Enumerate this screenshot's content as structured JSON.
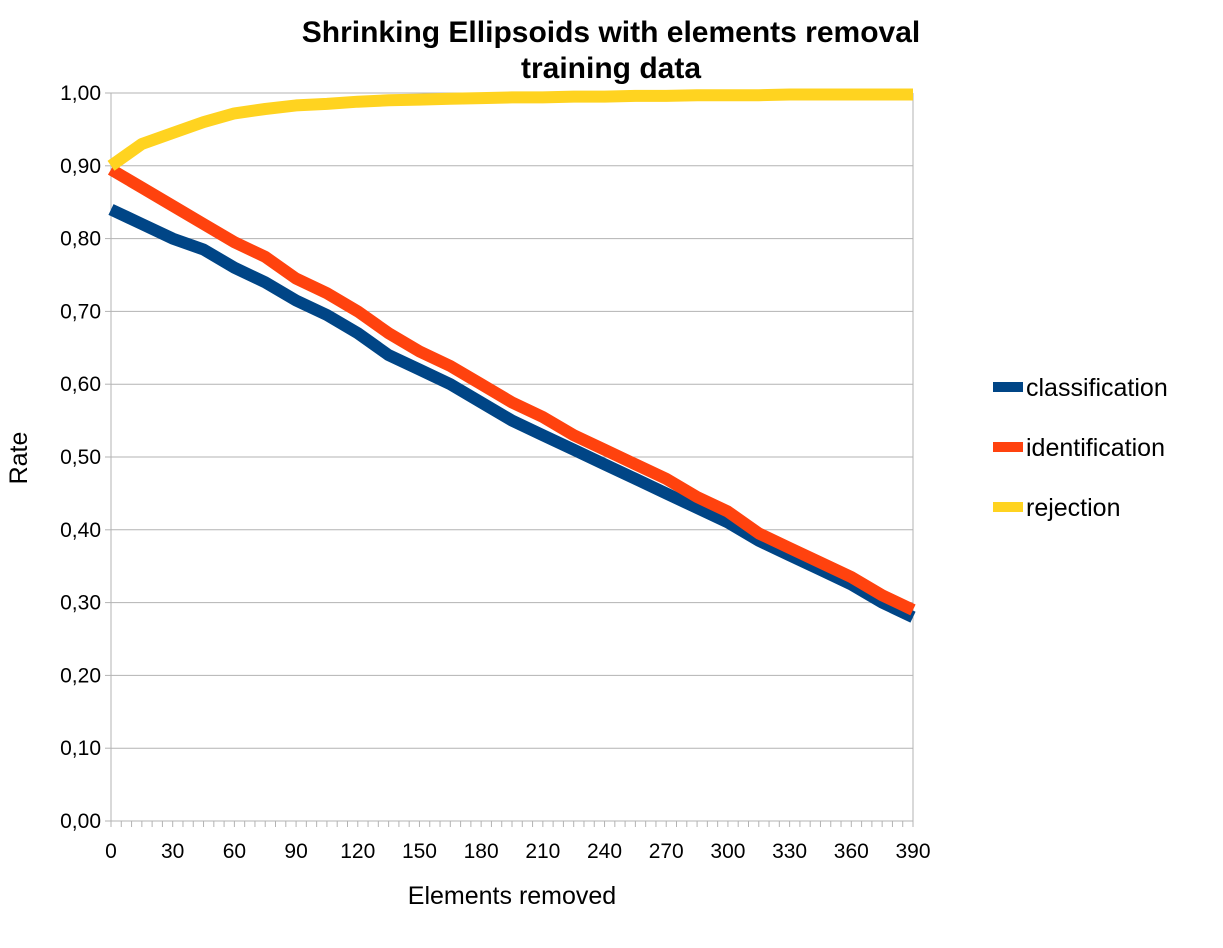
{
  "chart_data": {
    "type": "line",
    "title": "Shrinking Ellipsoids with elements removal",
    "subtitle": "training data",
    "xlabel": "Elements removed",
    "ylabel": "Rate",
    "xlim": [
      0,
      390
    ],
    "ylim": [
      0,
      1
    ],
    "x_ticks": [
      0,
      30,
      60,
      90,
      120,
      150,
      180,
      210,
      240,
      270,
      300,
      330,
      360,
      390
    ],
    "x_tick_labels": [
      "0",
      "30",
      "60",
      "90",
      "120",
      "150",
      "180",
      "210",
      "240",
      "270",
      "300",
      "330",
      "360",
      "390"
    ],
    "y_ticks": [
      0,
      0.1,
      0.2,
      0.3,
      0.4,
      0.5,
      0.6,
      0.7,
      0.8,
      0.9,
      1.0
    ],
    "y_tick_labels": [
      "0,00",
      "0,10",
      "0,20",
      "0,30",
      "0,40",
      "0,50",
      "0,60",
      "0,70",
      "0,80",
      "0,90",
      "1,00"
    ],
    "grid": true,
    "legend": "right",
    "x": [
      0,
      15,
      30,
      45,
      60,
      75,
      90,
      105,
      120,
      135,
      150,
      165,
      180,
      195,
      210,
      225,
      240,
      255,
      270,
      285,
      300,
      315,
      330,
      345,
      360,
      375,
      390
    ],
    "series": [
      {
        "name": "classification",
        "color": "#004586",
        "values": [
          0.84,
          0.82,
          0.8,
          0.785,
          0.76,
          0.74,
          0.715,
          0.695,
          0.67,
          0.64,
          0.62,
          0.6,
          0.575,
          0.55,
          0.53,
          0.51,
          0.49,
          0.47,
          0.45,
          0.43,
          0.41,
          0.385,
          0.365,
          0.345,
          0.325,
          0.3,
          0.28
        ]
      },
      {
        "name": "identification",
        "color": "#ff420e",
        "values": [
          0.895,
          0.87,
          0.845,
          0.82,
          0.795,
          0.775,
          0.745,
          0.725,
          0.7,
          0.67,
          0.645,
          0.625,
          0.6,
          0.575,
          0.555,
          0.53,
          0.51,
          0.49,
          0.47,
          0.445,
          0.425,
          0.395,
          0.375,
          0.355,
          0.335,
          0.31,
          0.29
        ]
      },
      {
        "name": "rejection",
        "color": "#ffd320",
        "values": [
          0.9,
          0.93,
          0.945,
          0.96,
          0.972,
          0.978,
          0.983,
          0.985,
          0.988,
          0.99,
          0.991,
          0.992,
          0.993,
          0.994,
          0.994,
          0.995,
          0.995,
          0.996,
          0.996,
          0.997,
          0.997,
          0.997,
          0.998,
          0.998,
          0.998,
          0.998,
          0.998
        ]
      }
    ]
  }
}
